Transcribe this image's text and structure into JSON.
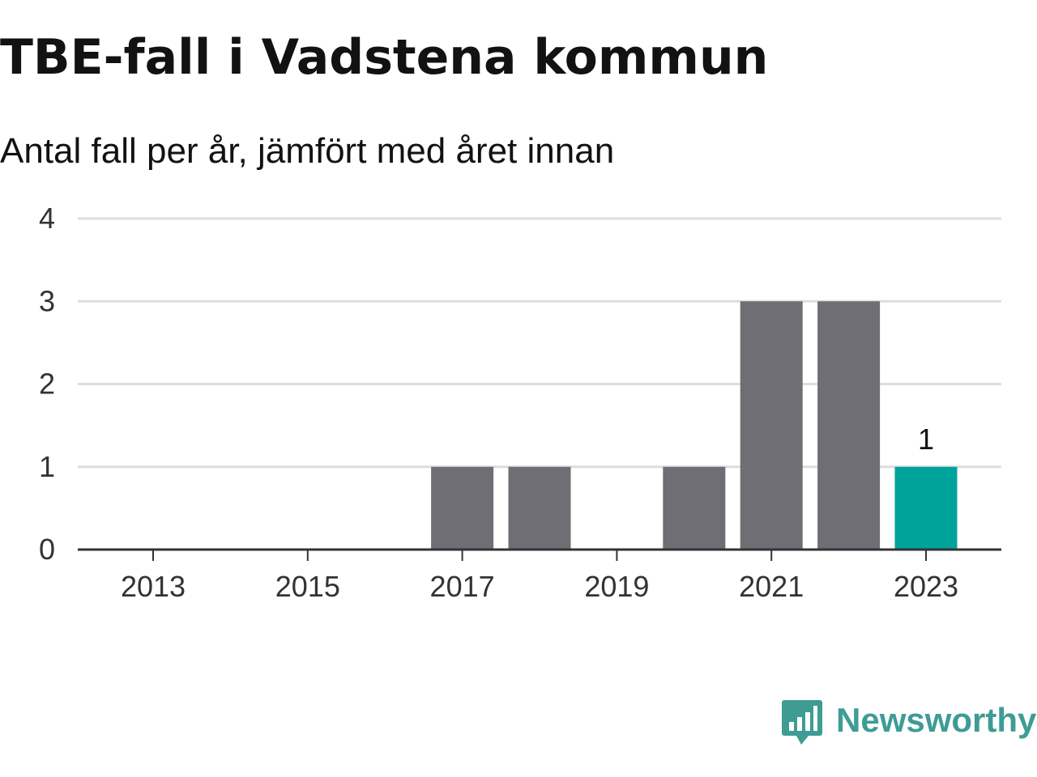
{
  "title": "TBE-fall i Vadstena kommun",
  "subtitle": "Antal fall per år, jämfört med året innan",
  "brand": {
    "name": "Newsworthy",
    "icon": "newsworthy-logo-icon",
    "color": "#3e9c95"
  },
  "chart_data": {
    "type": "bar",
    "title": "TBE-fall i Vadstena kommun",
    "subtitle": "Antal fall per år, jämfört med året innan",
    "categories": [
      "2013",
      "2014",
      "2015",
      "2016",
      "2017",
      "2018",
      "2019",
      "2020",
      "2021",
      "2022",
      "2023"
    ],
    "values": [
      0,
      0,
      0,
      0,
      1,
      1,
      0,
      1,
      3,
      3,
      1
    ],
    "x_tick_labels": [
      "2013",
      "2015",
      "2017",
      "2019",
      "2021",
      "2023"
    ],
    "y_ticks": [
      0,
      1,
      2,
      3,
      4
    ],
    "ylim": [
      0,
      4
    ],
    "xlabel": "",
    "ylabel": "",
    "grid": true,
    "bar_color": "#6f6e74",
    "highlight_color": "#00a399",
    "highlight_category": "2023",
    "data_labels": [
      {
        "category": "2023",
        "text": "1"
      }
    ]
  }
}
